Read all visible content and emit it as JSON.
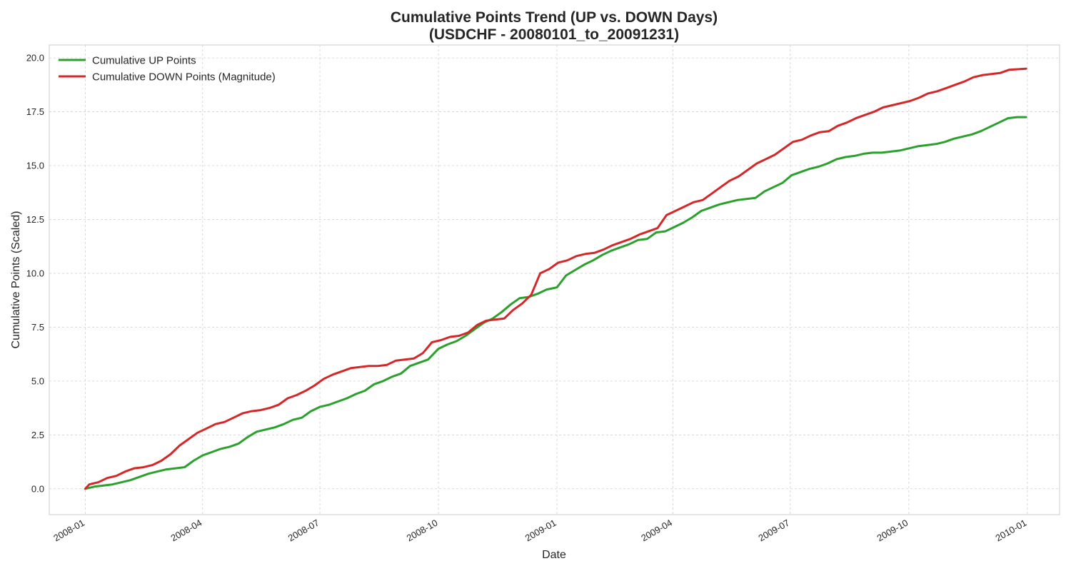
{
  "chart_data": {
    "type": "line",
    "title": "Cumulative Points Trend (UP vs. DOWN Days)",
    "subtitle": "(USDCHF - 20080101_to_20091231)",
    "xlabel": "Date",
    "ylabel": "Cumulative Points (Scaled)",
    "xlim": [
      "2007-12-04",
      "2010-01-26"
    ],
    "ylim": [
      -1.2,
      20.6
    ],
    "y_ticks": [
      0.0,
      2.5,
      5.0,
      7.5,
      10.0,
      12.5,
      15.0,
      17.5,
      20.0
    ],
    "y_tick_labels": [
      "0.0",
      "2.5",
      "5.0",
      "7.5",
      "10.0",
      "12.5",
      "15.0",
      "17.5",
      "20.0"
    ],
    "x_ticks": [
      "2008-01-01",
      "2008-04-01",
      "2008-07-01",
      "2008-10-01",
      "2009-01-01",
      "2009-04-01",
      "2009-07-01",
      "2009-10-01",
      "2010-01-01"
    ],
    "x_tick_labels": [
      "2008-01",
      "2008-04",
      "2008-07",
      "2008-10",
      "2009-01",
      "2009-04",
      "2009-07",
      "2009-10",
      "2010-01"
    ],
    "grid": true,
    "legend_position": "top-left",
    "series": [
      {
        "name": "Cumulative UP Points",
        "color": "#2ca02c",
        "points": [
          [
            "2008-01-01",
            0.0
          ],
          [
            "2008-01-08",
            0.1
          ],
          [
            "2008-01-15",
            0.15
          ],
          [
            "2008-01-22",
            0.2
          ],
          [
            "2008-01-29",
            0.3
          ],
          [
            "2008-02-05",
            0.4
          ],
          [
            "2008-02-12",
            0.55
          ],
          [
            "2008-02-19",
            0.7
          ],
          [
            "2008-02-26",
            0.8
          ],
          [
            "2008-03-04",
            0.9
          ],
          [
            "2008-03-11",
            0.95
          ],
          [
            "2008-03-18",
            1.0
          ],
          [
            "2008-03-25",
            1.3
          ],
          [
            "2008-04-01",
            1.55
          ],
          [
            "2008-04-08",
            1.7
          ],
          [
            "2008-04-15",
            1.85
          ],
          [
            "2008-04-22",
            1.95
          ],
          [
            "2008-04-29",
            2.1
          ],
          [
            "2008-05-06",
            2.4
          ],
          [
            "2008-05-13",
            2.65
          ],
          [
            "2008-05-20",
            2.75
          ],
          [
            "2008-05-27",
            2.85
          ],
          [
            "2008-06-03",
            3.0
          ],
          [
            "2008-06-10",
            3.2
          ],
          [
            "2008-06-17",
            3.3
          ],
          [
            "2008-06-24",
            3.6
          ],
          [
            "2008-07-01",
            3.8
          ],
          [
            "2008-07-08",
            3.9
          ],
          [
            "2008-07-15",
            4.05
          ],
          [
            "2008-07-22",
            4.2
          ],
          [
            "2008-07-29",
            4.4
          ],
          [
            "2008-08-05",
            4.55
          ],
          [
            "2008-08-12",
            4.85
          ],
          [
            "2008-08-19",
            5.0
          ],
          [
            "2008-08-26",
            5.2
          ],
          [
            "2008-09-02",
            5.35
          ],
          [
            "2008-09-09",
            5.7
          ],
          [
            "2008-09-16",
            5.85
          ],
          [
            "2008-09-23",
            6.0
          ],
          [
            "2008-10-01",
            6.5
          ],
          [
            "2008-10-08",
            6.7
          ],
          [
            "2008-10-15",
            6.85
          ],
          [
            "2008-10-22",
            7.1
          ],
          [
            "2008-10-29",
            7.4
          ],
          [
            "2008-11-05",
            7.7
          ],
          [
            "2008-11-12",
            7.9
          ],
          [
            "2008-11-19",
            8.2
          ],
          [
            "2008-11-26",
            8.55
          ],
          [
            "2008-12-03",
            8.85
          ],
          [
            "2008-12-10",
            8.9
          ],
          [
            "2008-12-17",
            9.05
          ],
          [
            "2008-12-24",
            9.25
          ],
          [
            "2009-01-01",
            9.35
          ],
          [
            "2009-01-08",
            9.9
          ],
          [
            "2009-01-15",
            10.15
          ],
          [
            "2009-01-22",
            10.4
          ],
          [
            "2009-01-29",
            10.6
          ],
          [
            "2009-02-05",
            10.85
          ],
          [
            "2009-02-12",
            11.05
          ],
          [
            "2009-02-19",
            11.2
          ],
          [
            "2009-02-26",
            11.35
          ],
          [
            "2009-03-05",
            11.55
          ],
          [
            "2009-03-12",
            11.6
          ],
          [
            "2009-03-19",
            11.9
          ],
          [
            "2009-03-26",
            11.95
          ],
          [
            "2009-04-02",
            12.15
          ],
          [
            "2009-04-09",
            12.35
          ],
          [
            "2009-04-16",
            12.6
          ],
          [
            "2009-04-23",
            12.9
          ],
          [
            "2009-04-30",
            13.05
          ],
          [
            "2009-05-07",
            13.2
          ],
          [
            "2009-05-14",
            13.3
          ],
          [
            "2009-05-21",
            13.4
          ],
          [
            "2009-05-28",
            13.45
          ],
          [
            "2009-06-04",
            13.5
          ],
          [
            "2009-06-11",
            13.8
          ],
          [
            "2009-06-18",
            14.0
          ],
          [
            "2009-06-25",
            14.2
          ],
          [
            "2009-07-02",
            14.55
          ],
          [
            "2009-07-09",
            14.7
          ],
          [
            "2009-07-16",
            14.85
          ],
          [
            "2009-07-23",
            14.95
          ],
          [
            "2009-07-30",
            15.1
          ],
          [
            "2009-08-06",
            15.3
          ],
          [
            "2009-08-13",
            15.4
          ],
          [
            "2009-08-20",
            15.45
          ],
          [
            "2009-08-27",
            15.55
          ],
          [
            "2009-09-03",
            15.6
          ],
          [
            "2009-09-10",
            15.6
          ],
          [
            "2009-09-17",
            15.65
          ],
          [
            "2009-09-24",
            15.7
          ],
          [
            "2009-10-01",
            15.8
          ],
          [
            "2009-10-08",
            15.9
          ],
          [
            "2009-10-15",
            15.95
          ],
          [
            "2009-10-22",
            16.0
          ],
          [
            "2009-10-29",
            16.1
          ],
          [
            "2009-11-05",
            16.25
          ],
          [
            "2009-11-12",
            16.35
          ],
          [
            "2009-11-19",
            16.45
          ],
          [
            "2009-11-26",
            16.6
          ],
          [
            "2009-12-03",
            16.8
          ],
          [
            "2009-12-10",
            17.0
          ],
          [
            "2009-12-17",
            17.2
          ],
          [
            "2009-12-24",
            17.25
          ],
          [
            "2009-12-31",
            17.25
          ]
        ]
      },
      {
        "name": "Cumulative DOWN Points (Magnitude)",
        "color": "#d62728",
        "points": [
          [
            "2008-01-01",
            0.0
          ],
          [
            "2008-01-04",
            0.2
          ],
          [
            "2008-01-11",
            0.3
          ],
          [
            "2008-01-18",
            0.5
          ],
          [
            "2008-01-25",
            0.6
          ],
          [
            "2008-02-01",
            0.8
          ],
          [
            "2008-02-08",
            0.95
          ],
          [
            "2008-02-15",
            1.0
          ],
          [
            "2008-02-22",
            1.1
          ],
          [
            "2008-02-29",
            1.3
          ],
          [
            "2008-03-07",
            1.6
          ],
          [
            "2008-03-14",
            2.0
          ],
          [
            "2008-03-21",
            2.3
          ],
          [
            "2008-03-28",
            2.6
          ],
          [
            "2008-04-04",
            2.8
          ],
          [
            "2008-04-11",
            3.0
          ],
          [
            "2008-04-18",
            3.1
          ],
          [
            "2008-04-25",
            3.3
          ],
          [
            "2008-05-02",
            3.5
          ],
          [
            "2008-05-09",
            3.6
          ],
          [
            "2008-05-16",
            3.65
          ],
          [
            "2008-05-23",
            3.75
          ],
          [
            "2008-05-30",
            3.9
          ],
          [
            "2008-06-06",
            4.2
          ],
          [
            "2008-06-13",
            4.35
          ],
          [
            "2008-06-20",
            4.55
          ],
          [
            "2008-06-27",
            4.8
          ],
          [
            "2008-07-04",
            5.1
          ],
          [
            "2008-07-11",
            5.3
          ],
          [
            "2008-07-18",
            5.45
          ],
          [
            "2008-07-25",
            5.6
          ],
          [
            "2008-08-01",
            5.65
          ],
          [
            "2008-08-08",
            5.7
          ],
          [
            "2008-08-15",
            5.7
          ],
          [
            "2008-08-22",
            5.75
          ],
          [
            "2008-08-29",
            5.95
          ],
          [
            "2008-09-05",
            6.0
          ],
          [
            "2008-09-12",
            6.05
          ],
          [
            "2008-09-19",
            6.3
          ],
          [
            "2008-09-26",
            6.8
          ],
          [
            "2008-10-03",
            6.9
          ],
          [
            "2008-10-10",
            7.05
          ],
          [
            "2008-10-17",
            7.1
          ],
          [
            "2008-10-24",
            7.25
          ],
          [
            "2008-10-31",
            7.6
          ],
          [
            "2008-11-07",
            7.8
          ],
          [
            "2008-11-14",
            7.85
          ],
          [
            "2008-11-21",
            7.9
          ],
          [
            "2008-11-28",
            8.3
          ],
          [
            "2008-12-05",
            8.6
          ],
          [
            "2008-12-12",
            9.0
          ],
          [
            "2008-12-19",
            10.0
          ],
          [
            "2008-12-26",
            10.2
          ],
          [
            "2009-01-02",
            10.5
          ],
          [
            "2009-01-09",
            10.6
          ],
          [
            "2009-01-16",
            10.8
          ],
          [
            "2009-01-23",
            10.9
          ],
          [
            "2009-01-30",
            10.95
          ],
          [
            "2009-02-06",
            11.1
          ],
          [
            "2009-02-13",
            11.3
          ],
          [
            "2009-02-20",
            11.45
          ],
          [
            "2009-02-27",
            11.6
          ],
          [
            "2009-03-06",
            11.8
          ],
          [
            "2009-03-13",
            11.95
          ],
          [
            "2009-03-20",
            12.1
          ],
          [
            "2009-03-27",
            12.7
          ],
          [
            "2009-04-03",
            12.9
          ],
          [
            "2009-04-10",
            13.1
          ],
          [
            "2009-04-17",
            13.3
          ],
          [
            "2009-04-24",
            13.4
          ],
          [
            "2009-05-01",
            13.7
          ],
          [
            "2009-05-08",
            14.0
          ],
          [
            "2009-05-15",
            14.3
          ],
          [
            "2009-05-22",
            14.5
          ],
          [
            "2009-05-29",
            14.8
          ],
          [
            "2009-06-05",
            15.1
          ],
          [
            "2009-06-12",
            15.3
          ],
          [
            "2009-06-19",
            15.5
          ],
          [
            "2009-06-26",
            15.8
          ],
          [
            "2009-07-03",
            16.1
          ],
          [
            "2009-07-10",
            16.2
          ],
          [
            "2009-07-17",
            16.4
          ],
          [
            "2009-07-24",
            16.55
          ],
          [
            "2009-07-31",
            16.6
          ],
          [
            "2009-08-07",
            16.85
          ],
          [
            "2009-08-14",
            17.0
          ],
          [
            "2009-08-21",
            17.2
          ],
          [
            "2009-08-28",
            17.35
          ],
          [
            "2009-09-04",
            17.5
          ],
          [
            "2009-09-11",
            17.7
          ],
          [
            "2009-09-18",
            17.8
          ],
          [
            "2009-09-25",
            17.9
          ],
          [
            "2009-10-02",
            18.0
          ],
          [
            "2009-10-09",
            18.15
          ],
          [
            "2009-10-16",
            18.35
          ],
          [
            "2009-10-23",
            18.45
          ],
          [
            "2009-10-30",
            18.6
          ],
          [
            "2009-11-06",
            18.75
          ],
          [
            "2009-11-13",
            18.9
          ],
          [
            "2009-11-20",
            19.1
          ],
          [
            "2009-11-27",
            19.2
          ],
          [
            "2009-12-04",
            19.25
          ],
          [
            "2009-12-11",
            19.3
          ],
          [
            "2009-12-18",
            19.45
          ],
          [
            "2009-12-31",
            19.5
          ]
        ]
      }
    ]
  }
}
